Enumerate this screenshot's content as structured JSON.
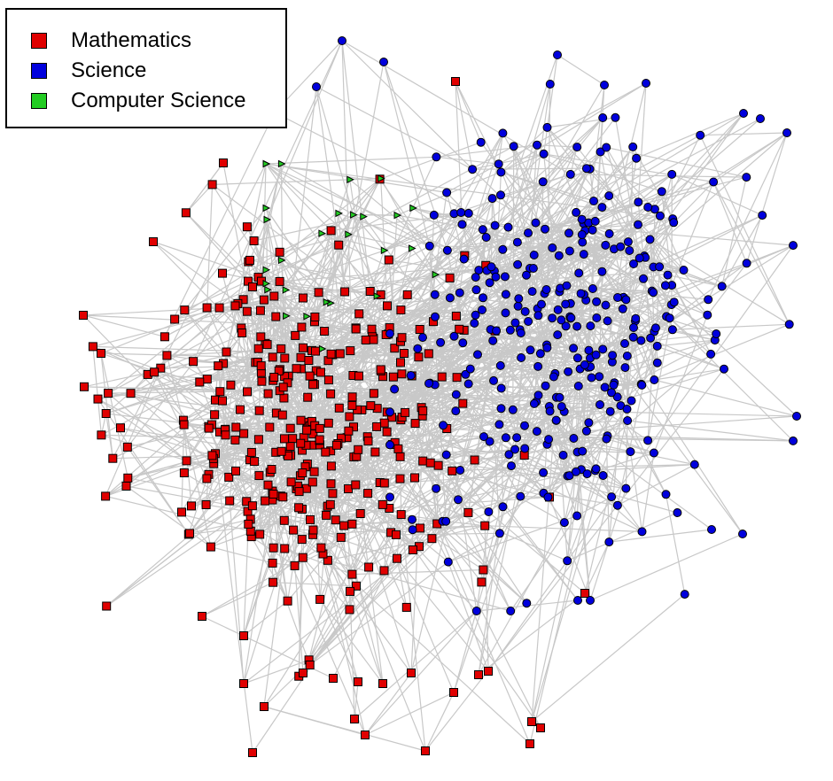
{
  "legend": {
    "items": [
      {
        "label": "Mathematics",
        "color": "#e00000",
        "shape": "square"
      },
      {
        "label": "Science",
        "color": "#0000dd",
        "shape": "circle"
      },
      {
        "label": "Computer Science",
        "color": "#22cc22",
        "shape": "triangle"
      }
    ]
  },
  "colors": {
    "edge": "#c8c8c8",
    "node_outline": "#000000",
    "background": "#ffffff"
  }
}
